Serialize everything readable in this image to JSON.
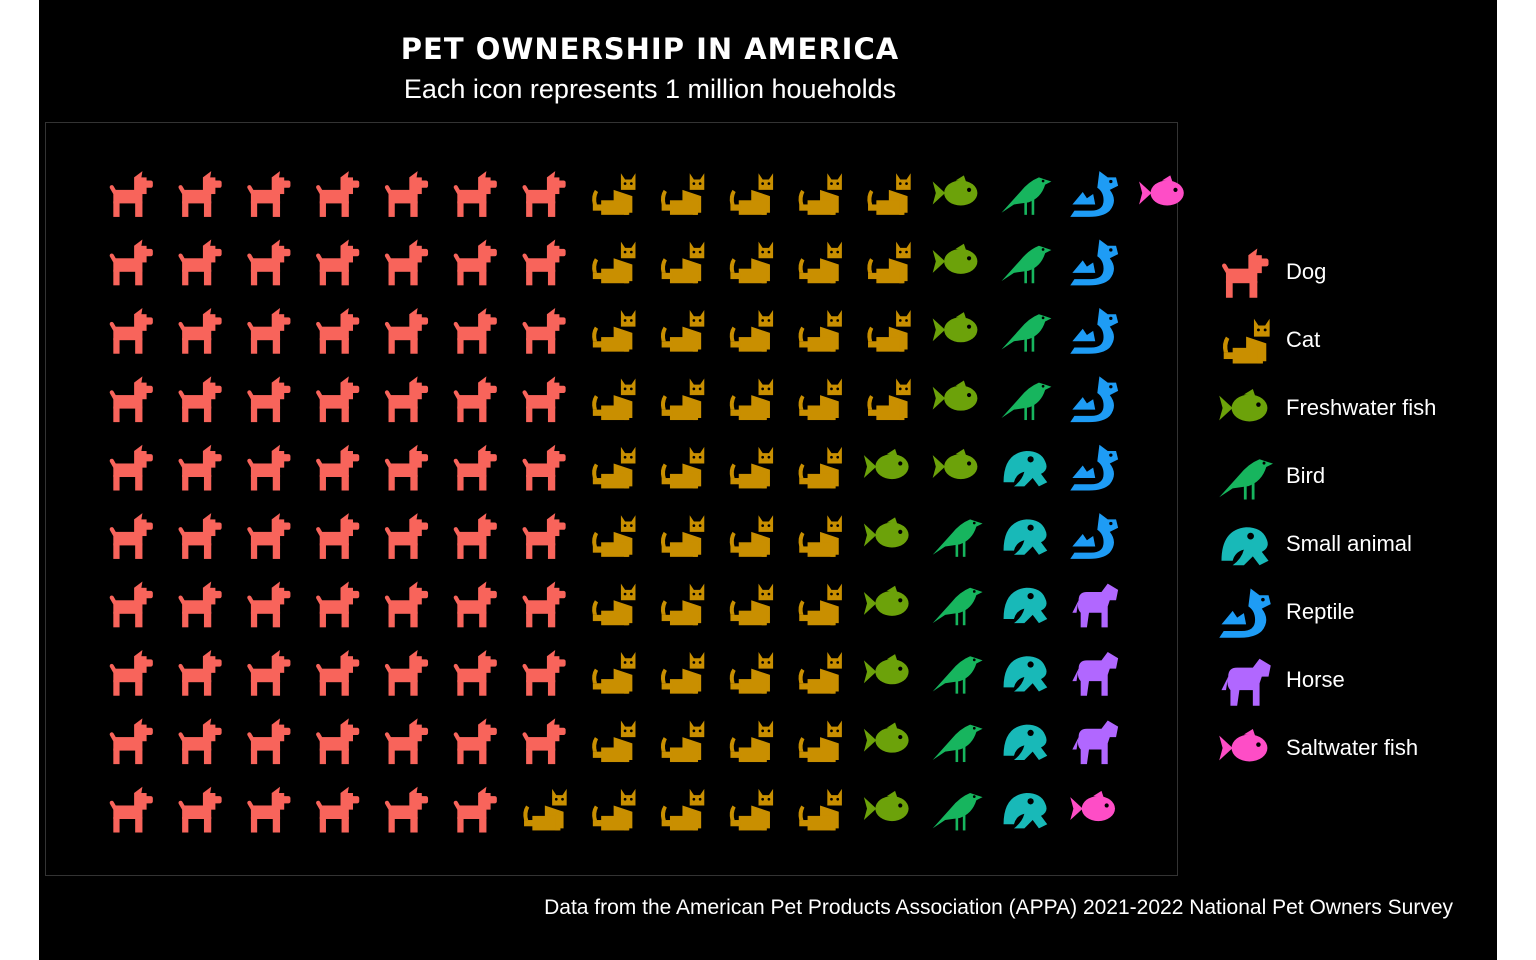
{
  "chart_data": {
    "type": "waffle",
    "title": "PET OWNERSHIP IN AMERICA",
    "subtitle": "Each icon represents 1 million houeholds",
    "caption": "Data from the American Pet Products Association (APPA) 2021-2022 National Pet Owners Survey",
    "rows": 10,
    "legend_position": "right",
    "series": [
      {
        "name": "Dog",
        "value": 69,
        "color": "#F8645B",
        "icon": "dog-icon"
      },
      {
        "name": "Cat",
        "value": 45,
        "color": "#C98F00",
        "icon": "cat-icon"
      },
      {
        "name": "Freshwater fish",
        "value": 11,
        "color": "#6CA20A",
        "icon": "fish-icon"
      },
      {
        "name": "Bird",
        "value": 9,
        "color": "#17B55E",
        "icon": "bird-icon"
      },
      {
        "name": "Small animal",
        "value": 6,
        "color": "#18B9B8",
        "icon": "frog-icon"
      },
      {
        "name": "Reptile",
        "value": 6,
        "color": "#1E9CF5",
        "icon": "dragon-icon"
      },
      {
        "name": "Horse",
        "value": 3,
        "color": "#B167FF",
        "icon": "horse-icon"
      },
      {
        "name": "Saltwater fish",
        "value": 2,
        "color": "#FE4DC6",
        "icon": "fish-icon"
      }
    ]
  }
}
